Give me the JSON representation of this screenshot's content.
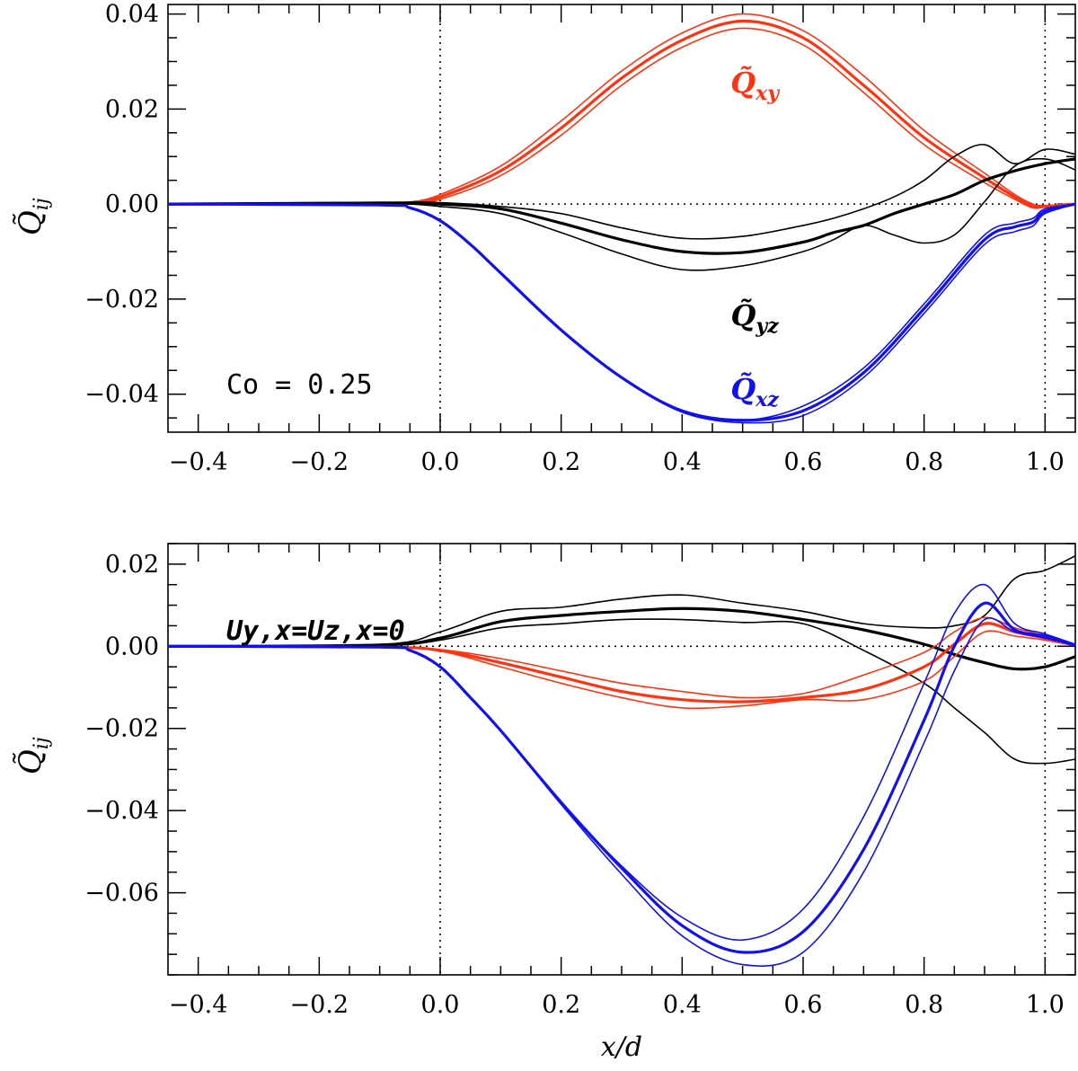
{
  "chart_data": [
    {
      "type": "line",
      "panel": "top",
      "xlim": [
        -0.45,
        1.05
      ],
      "ylim": [
        -0.048,
        0.042
      ],
      "xticks": [
        -0.4,
        -0.2,
        0.0,
        0.2,
        0.4,
        0.6,
        0.8,
        1.0
      ],
      "xtick_labels": [
        "−0.4",
        "−0.2",
        "0.0",
        "0.2",
        "0.4",
        "0.6",
        "0.8",
        "1.0"
      ],
      "yticks": [
        0.04,
        0.02,
        0.0,
        -0.02,
        -0.04
      ],
      "ytick_labels": [
        "0.04",
        "0.02",
        "0.00",
        "−0.02",
        "−0.04"
      ],
      "ylabel": "Q̃ij",
      "annotation": "Co = 0.25",
      "vlines": [
        0.0,
        1.0
      ],
      "hline": 0.0,
      "series": [
        {
          "name": "Q̃xy",
          "label": "Q̃xy",
          "color": "#ff3311",
          "label_pos": [
            0.52,
            0.0235
          ],
          "x": [
            -0.45,
            -0.1,
            -0.05,
            0.0,
            0.1,
            0.2,
            0.3,
            0.4,
            0.5,
            0.6,
            0.7,
            0.8,
            0.9,
            0.95,
            0.98,
            1.0,
            1.05
          ],
          "lines": [
            [
              0,
              0,
              0.0003,
              0.0015,
              0.007,
              0.016,
              0.0265,
              0.0345,
              0.0385,
              0.035,
              0.025,
              0.014,
              0.0055,
              0.0015,
              -0.0005,
              -0.0005,
              0
            ],
            [
              0,
              0,
              0.0004,
              0.002,
              0.008,
              0.0175,
              0.028,
              0.036,
              0.04,
              0.0365,
              0.027,
              0.0155,
              0.0065,
              0.002,
              0.0,
              -0.0003,
              0
            ],
            [
              0,
              0,
              0.0002,
              0.001,
              0.006,
              0.0145,
              0.025,
              0.033,
              0.037,
              0.0335,
              0.0235,
              0.0125,
              0.0045,
              0.001,
              -0.0008,
              -0.0006,
              0
            ]
          ]
        },
        {
          "name": "Q̃yz",
          "label": "Q̃yz",
          "color": "#000000",
          "label_pos": [
            0.52,
            -0.0255
          ],
          "x": [
            -0.45,
            -0.1,
            0.0,
            0.1,
            0.2,
            0.3,
            0.4,
            0.5,
            0.6,
            0.65,
            0.7,
            0.75,
            0.8,
            0.85,
            0.9,
            0.95,
            1.0,
            1.05
          ],
          "lines": [
            [
              0,
              0.0002,
              0.0,
              -0.001,
              -0.004,
              -0.0075,
              -0.01,
              -0.0102,
              -0.008,
              -0.006,
              -0.0045,
              -0.002,
              0.0,
              0.002,
              0.005,
              0.007,
              0.0085,
              0.0095
            ],
            [
              0,
              0.0004,
              0.0003,
              -0.0005,
              -0.002,
              -0.005,
              -0.0072,
              -0.0068,
              -0.0045,
              -0.003,
              -0.001,
              0.0015,
              0.005,
              0.01,
              0.0125,
              0.0085,
              0.0115,
              0.0105
            ],
            [
              0,
              0.0001,
              -0.0005,
              -0.002,
              -0.006,
              -0.0105,
              -0.0138,
              -0.013,
              -0.01,
              -0.0075,
              -0.0045,
              -0.0065,
              -0.0082,
              -0.0065,
              0.0005,
              0.008,
              0.0095,
              0.0072
            ]
          ]
        },
        {
          "name": "Q̃xz",
          "label": "Q̃xz",
          "color": "#1111ee",
          "label_pos": [
            0.52,
            -0.041
          ],
          "x": [
            -0.45,
            -0.1,
            -0.05,
            0.0,
            0.05,
            0.1,
            0.2,
            0.3,
            0.4,
            0.5,
            0.6,
            0.7,
            0.8,
            0.9,
            0.95,
            0.98,
            1.0,
            1.05
          ],
          "lines": [
            [
              0,
              -0.0002,
              -0.0008,
              -0.0035,
              -0.0085,
              -0.0145,
              -0.0265,
              -0.0365,
              -0.0435,
              -0.0455,
              -0.0435,
              -0.0355,
              -0.022,
              -0.0075,
              -0.0048,
              -0.0038,
              -0.0015,
              0
            ],
            [
              0,
              -0.0002,
              -0.0008,
              -0.0035,
              -0.0085,
              -0.0145,
              -0.0265,
              -0.0365,
              -0.0435,
              -0.0455,
              -0.0425,
              -0.0345,
              -0.021,
              -0.0065,
              -0.004,
              -0.003,
              -0.001,
              0
            ],
            [
              0,
              -0.0002,
              -0.0008,
              -0.0035,
              -0.0085,
              -0.0145,
              -0.0265,
              -0.0365,
              -0.0438,
              -0.046,
              -0.0445,
              -0.0365,
              -0.023,
              -0.0085,
              -0.0058,
              -0.0046,
              -0.002,
              0
            ]
          ]
        }
      ]
    },
    {
      "type": "line",
      "panel": "bottom",
      "xlim": [
        -0.45,
        1.05
      ],
      "ylim": [
        -0.08,
        0.025
      ],
      "xticks": [
        -0.4,
        -0.2,
        0.0,
        0.2,
        0.4,
        0.6,
        0.8,
        1.0
      ],
      "xtick_labels": [
        "−0.4",
        "−0.2",
        "0.0",
        "0.2",
        "0.4",
        "0.6",
        "0.8",
        "1.0"
      ],
      "yticks": [
        0.02,
        0.0,
        -0.02,
        -0.04,
        -0.06
      ],
      "ytick_labels": [
        "0.02",
        "0.00",
        "−0.02",
        "−0.04",
        "−0.06"
      ],
      "xlabel": "x/d",
      "ylabel": "Q̃ij",
      "annotation": "Uy,x=Uz,x=0",
      "vlines": [
        0.0,
        1.0
      ],
      "hline": 0.0,
      "series": [
        {
          "name": "black",
          "color": "#000000",
          "x": [
            -0.45,
            -0.1,
            0.0,
            0.1,
            0.2,
            0.3,
            0.4,
            0.5,
            0.6,
            0.7,
            0.8,
            0.85,
            0.9,
            0.95,
            1.0,
            1.05
          ],
          "lines": [
            [
              0,
              0.0003,
              0.002,
              0.006,
              0.0075,
              0.0085,
              0.0092,
              0.0085,
              0.0065,
              0.004,
              0.0005,
              -0.002,
              -0.004,
              -0.0055,
              -0.005,
              -0.0025
            ],
            [
              0,
              0.0004,
              0.0035,
              0.0085,
              0.0095,
              0.0115,
              0.0125,
              0.0105,
              0.0085,
              0.0055,
              0.0045,
              0.005,
              0.0075,
              0.0165,
              0.0185,
              0.022
            ],
            [
              0,
              0.0002,
              0.0015,
              0.0045,
              0.0055,
              0.0065,
              0.0065,
              0.0058,
              0.0055,
              -0.001,
              -0.009,
              -0.015,
              -0.021,
              -0.0275,
              -0.0285,
              -0.0275
            ]
          ]
        },
        {
          "name": "red",
          "color": "#ff3311",
          "x": [
            -0.45,
            -0.1,
            0.0,
            0.1,
            0.2,
            0.3,
            0.4,
            0.5,
            0.6,
            0.7,
            0.8,
            0.85,
            0.9,
            0.95,
            1.0,
            1.05
          ],
          "lines": [
            [
              0,
              -0.0002,
              -0.001,
              -0.004,
              -0.0075,
              -0.011,
              -0.013,
              -0.0135,
              -0.0125,
              -0.0105,
              -0.005,
              0.0005,
              0.0055,
              0.0035,
              0.002,
              0.0003
            ],
            [
              0,
              -0.0002,
              -0.0008,
              -0.003,
              -0.006,
              -0.009,
              -0.011,
              -0.0125,
              -0.0115,
              -0.007,
              -0.0015,
              0.0035,
              0.007,
              0.0045,
              0.0025,
              0.0005
            ],
            [
              0,
              -0.0002,
              -0.0012,
              -0.005,
              -0.009,
              -0.0125,
              -0.015,
              -0.0145,
              -0.013,
              -0.013,
              -0.0085,
              -0.0025,
              0.0035,
              0.0025,
              0.0015,
              0.0001
            ]
          ]
        },
        {
          "name": "blue",
          "color": "#1111ee",
          "x": [
            -0.45,
            -0.1,
            -0.05,
            0.0,
            0.05,
            0.1,
            0.2,
            0.3,
            0.4,
            0.5,
            0.6,
            0.7,
            0.8,
            0.85,
            0.9,
            0.95,
            1.0,
            1.05
          ],
          "lines": [
            [
              0,
              -0.0002,
              -0.001,
              -0.005,
              -0.0125,
              -0.0205,
              -0.038,
              -0.054,
              -0.068,
              -0.0745,
              -0.0695,
              -0.0495,
              -0.018,
              0.0,
              0.0105,
              0.004,
              0.0025,
              0.0003
            ],
            [
              0,
              -0.0002,
              -0.001,
              -0.005,
              -0.0125,
              -0.0205,
              -0.038,
              -0.0535,
              -0.066,
              -0.0715,
              -0.064,
              -0.0415,
              -0.009,
              0.008,
              0.015,
              0.0055,
              0.003,
              0.0005
            ],
            [
              0,
              -0.0002,
              -0.001,
              -0.005,
              -0.0125,
              -0.0205,
              -0.0385,
              -0.0555,
              -0.0705,
              -0.0775,
              -0.0745,
              -0.055,
              -0.0235,
              -0.006,
              0.0065,
              0.0035,
              0.002,
              0.0001
            ]
          ]
        }
      ]
    }
  ]
}
